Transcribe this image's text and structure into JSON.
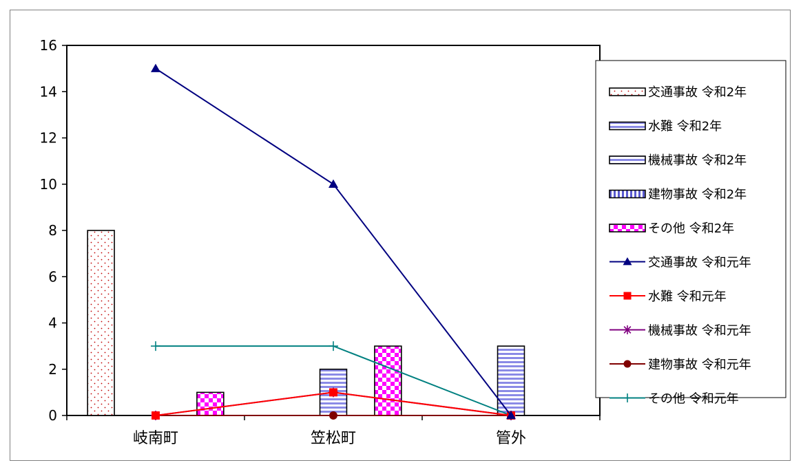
{
  "chart_data": {
    "type": "bar",
    "categories": [
      "岐南町",
      "笠松町",
      "管外"
    ],
    "ylim": [
      0,
      16
    ],
    "yticks": [
      0,
      2,
      4,
      6,
      8,
      10,
      12,
      14,
      16
    ],
    "legend_position": "right",
    "grid": false,
    "bar_series": [
      {
        "name": "交通事故 令和2年",
        "values": [
          8,
          0,
          0
        ],
        "pattern": "dots",
        "color": "#c00000"
      },
      {
        "name": "水難 令和2年",
        "values": [
          0,
          0,
          0
        ],
        "pattern": "hstripes",
        "color": "#8a8ae6"
      },
      {
        "name": "機械事故 令和2年",
        "values": [
          0,
          2,
          3
        ],
        "pattern": "hstripes",
        "color": "#8a8ae6"
      },
      {
        "name": "建物事故 令和2年",
        "values": [
          0,
          0,
          0
        ],
        "pattern": "vstripes",
        "color": "#5a5ad0"
      },
      {
        "name": "その他 令和2年",
        "values": [
          1,
          3,
          0
        ],
        "pattern": "checker",
        "color": "#ff00ff"
      }
    ],
    "line_series": [
      {
        "name": "交通事故 令和元年",
        "values": [
          15,
          10,
          0
        ],
        "marker": "triangle",
        "color": "#000080"
      },
      {
        "name": "水難 令和元年",
        "values": [
          0,
          1,
          0
        ],
        "marker": "square",
        "color": "#ff0000"
      },
      {
        "name": "機械事故 令和元年",
        "values": [
          0,
          1,
          0
        ],
        "marker": "star",
        "color": "#800080"
      },
      {
        "name": "建物事故 令和元年",
        "values": [
          0,
          0,
          0
        ],
        "marker": "circle",
        "color": "#800000"
      },
      {
        "name": "その他 令和元年",
        "values": [
          3,
          3,
          0
        ],
        "marker": "plus",
        "color": "#008080"
      }
    ]
  }
}
